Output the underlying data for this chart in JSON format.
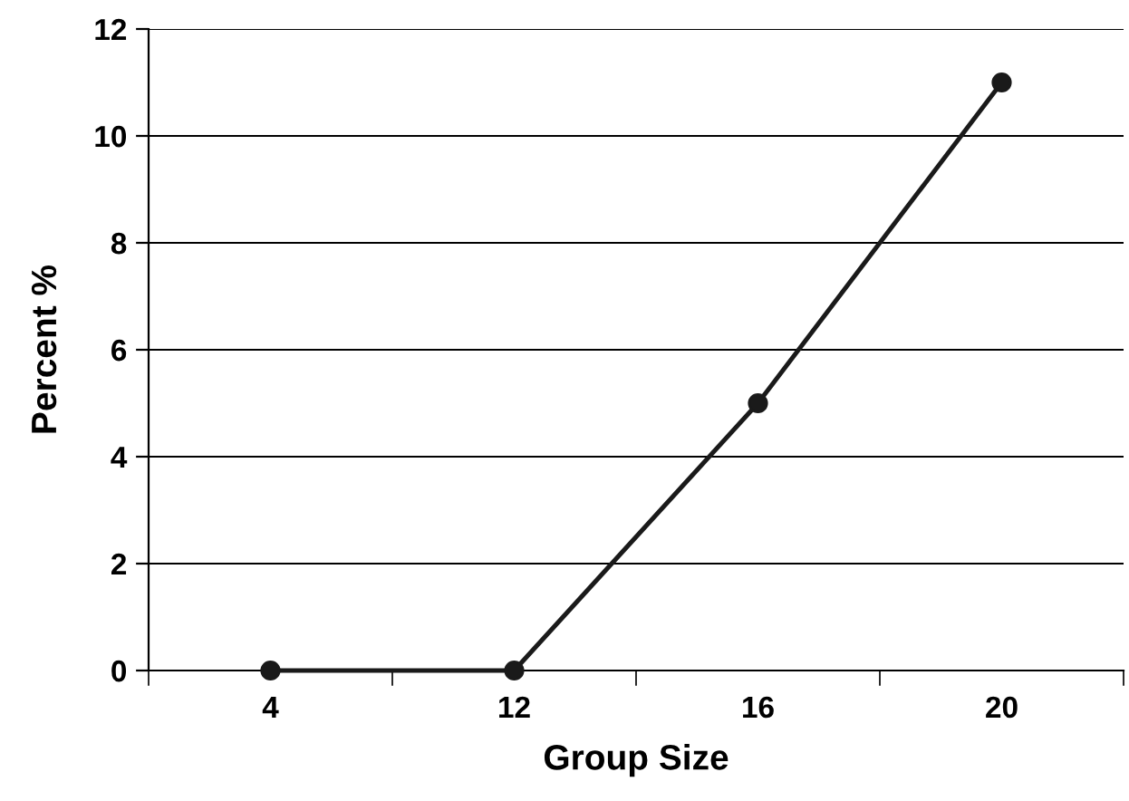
{
  "chart_data": {
    "type": "line",
    "xlabel": "Group Size",
    "ylabel": "Percent %",
    "categories": [
      "4",
      "12",
      "16",
      "20"
    ],
    "series": [
      {
        "color": "#1a1a1a",
        "values": [
          0,
          0,
          5,
          11
        ]
      }
    ],
    "ylim": [
      0,
      12
    ],
    "yticks": [
      0,
      2,
      4,
      6,
      8,
      10,
      12
    ],
    "grid": "y",
    "marker": "circle",
    "line_style": "solid"
  }
}
